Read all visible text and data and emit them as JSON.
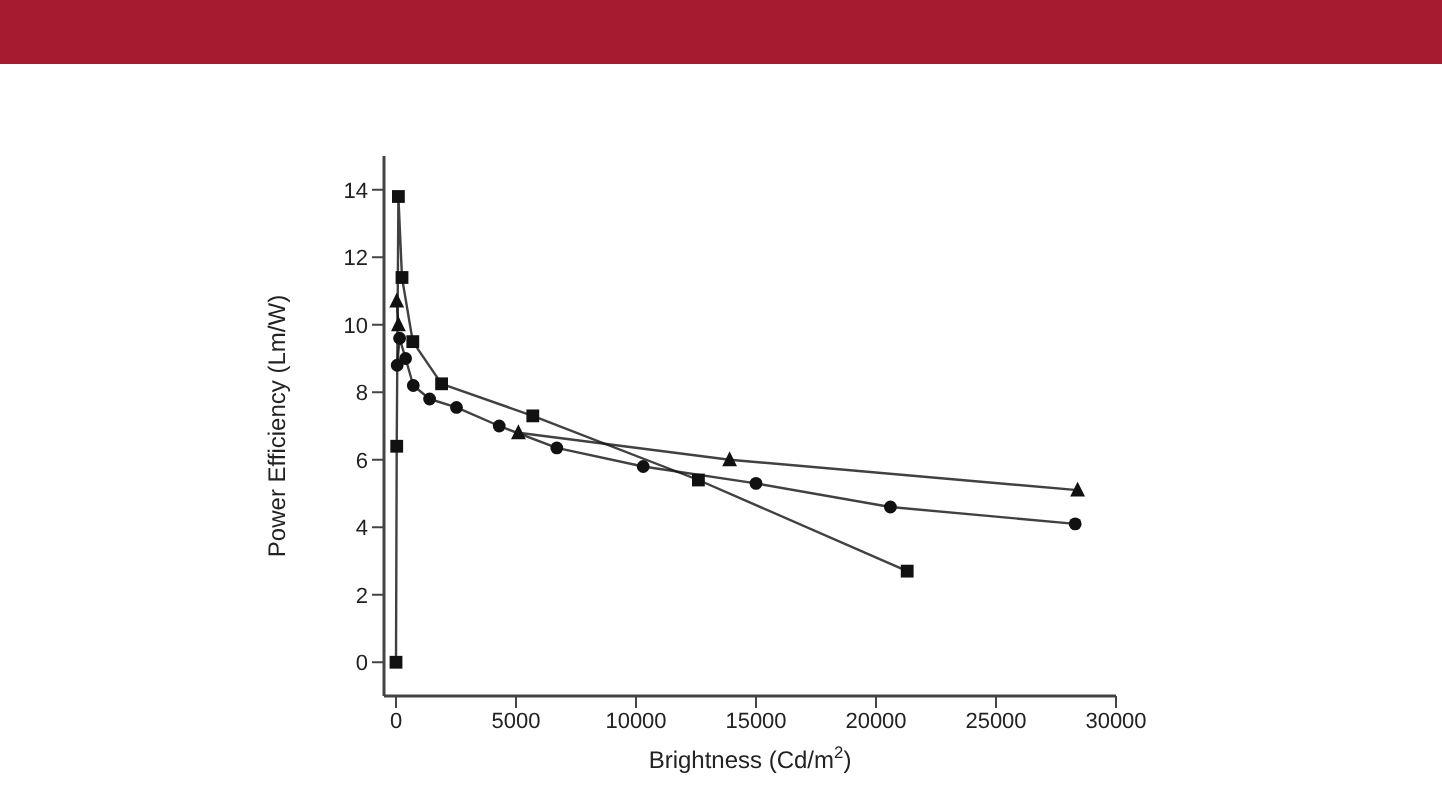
{
  "chart_data": {
    "type": "line",
    "xlabel": "Brightness (Cd/m$^{2}$)",
    "ylabel": "Power Efficiency (Lm/W)",
    "xlim": [
      -500,
      30000
    ],
    "xticks": [
      0,
      5000,
      10000,
      15000,
      20000,
      25000,
      30000
    ],
    "ylim": [
      -1,
      15
    ],
    "yticks": [
      0,
      2,
      4,
      6,
      8,
      10,
      12,
      14
    ],
    "series": [
      {
        "marker": "square",
        "color": "#111111",
        "x": [
          0,
          30,
          100,
          250,
          700,
          1900,
          5700,
          12600,
          21300
        ],
        "values": [
          0,
          6.4,
          13.8,
          11.4,
          9.5,
          8.25,
          7.3,
          5.4,
          2.7
        ]
      },
      {
        "marker": "triangle",
        "color": "#111111",
        "x": [
          30,
          100,
          250,
          5100,
          13900,
          28400
        ],
        "values": [
          10.7,
          10.0,
          null,
          6.8,
          6.0,
          5.1
        ]
      },
      {
        "marker": "circle",
        "color": "#111111",
        "x": [
          50,
          150,
          400,
          720,
          1400,
          2520,
          4300,
          6700,
          10300,
          15000,
          20600,
          28300
        ],
        "values": [
          8.8,
          9.6,
          9.0,
          8.2,
          7.8,
          7.55,
          7.0,
          6.35,
          5.8,
          5.3,
          4.6,
          4.1
        ]
      }
    ]
  }
}
